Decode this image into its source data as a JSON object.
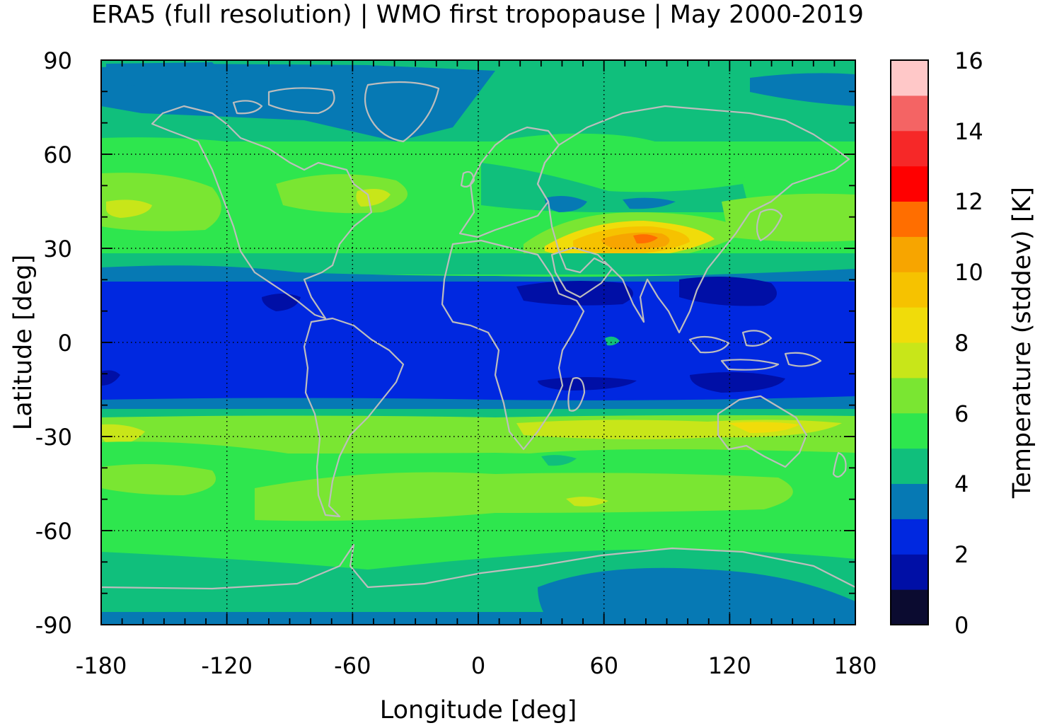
{
  "title": "ERA5 (full resolution) | WMO first tropopause | May 2000-2019",
  "map": {
    "xlabel": "Longitude [deg]",
    "ylabel": "Latitude [deg]",
    "xlim": [
      -180,
      180
    ],
    "ylim": [
      -90,
      90
    ],
    "xticks": [
      "-180",
      "-120",
      "-60",
      "0",
      "60",
      "120",
      "180"
    ],
    "yticks": [
      "90",
      "60",
      "30",
      "0",
      "-30",
      "-60",
      "-90"
    ],
    "grid": true,
    "coastline_color": "#bdbdbd"
  },
  "colorbar": {
    "label": "Temperature (stddev) [K]",
    "ticks": [
      "16",
      "14",
      "12",
      "10",
      "8",
      "6",
      "4",
      "2",
      "0"
    ],
    "range": [
      0,
      16
    ],
    "step": 1,
    "colors": [
      "#0b0b30",
      "#000fa6",
      "#0028e0",
      "#0679b4",
      "#10bf7c",
      "#2ee64e",
      "#7ae632",
      "#c8e619",
      "#f0dc0a",
      "#f6c200",
      "#f7a500",
      "#ff6e00",
      "#ff0000",
      "#f62828",
      "#f46464",
      "#ffc8c8"
    ]
  }
}
